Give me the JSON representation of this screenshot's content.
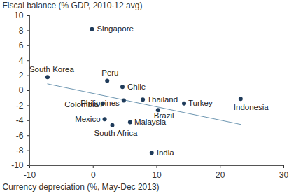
{
  "chart_data": {
    "type": "scatter",
    "x_label": "Currency depreciation (%, May-Dec 2013)",
    "y_label": "Fiscal balance (% GDP, 2010-12 avg)",
    "labels": [
      "Singapore",
      "South Korea",
      "Peru",
      "Chile",
      "Thailand",
      "Colombia",
      "Philippines",
      "Turkey",
      "Indonesia",
      "Brazil",
      "Mexico",
      "Malaysia",
      "South Africa",
      "India"
    ],
    "x": [
      -0.2,
      -7.2,
      2.2,
      4.6,
      7.8,
      1.5,
      4.8,
      14.3,
      23.2,
      10.2,
      1.8,
      5.8,
      3.0,
      9.2
    ],
    "values": [
      8.2,
      1.8,
      1.3,
      0.5,
      -1.2,
      -1.7,
      -1.3,
      -1.7,
      -1.1,
      -2.6,
      -3.8,
      -4.2,
      -4.6,
      -8.3
    ],
    "color": "#1f3b5a",
    "trend_line": {
      "x": [
        -7.2,
        23.2
      ],
      "values": [
        0.9,
        -4.5
      ],
      "color": "#6d96b1"
    },
    "xlim": [
      -10,
      30
    ],
    "ylim": [
      -10,
      10
    ],
    "xticks": [
      -10,
      0,
      10,
      20,
      30
    ],
    "yticks": [
      -10,
      -8,
      -6,
      -4,
      -2,
      0,
      2,
      4,
      6,
      8,
      10
    ],
    "grid": false
  }
}
